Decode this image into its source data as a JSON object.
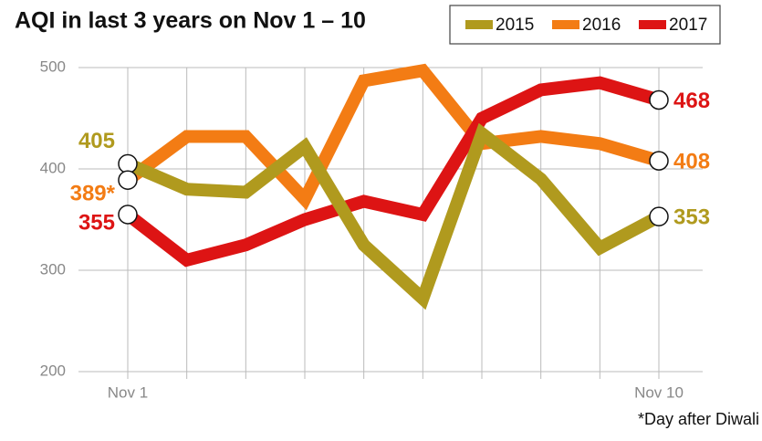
{
  "chart_data": {
    "type": "line",
    "title": "AQI in last 3 years on Nov 1 – 10",
    "categories": [
      "Nov 1",
      null,
      null,
      null,
      null,
      null,
      null,
      null,
      null,
      "Nov 10"
    ],
    "series": [
      {
        "name": "2015",
        "color": "#b09a1e",
        "values": [
          405,
          380,
          377,
          422,
          325,
          272,
          435,
          390,
          322,
          353
        ],
        "value_labels": [
          "405",
          null,
          null,
          null,
          null,
          null,
          null,
          null,
          null,
          "353"
        ]
      },
      {
        "name": "2016",
        "color": "#f37c14",
        "values": [
          389,
          432,
          432,
          370,
          487,
          497,
          425,
          432,
          425,
          408
        ],
        "value_labels": [
          "389*",
          null,
          null,
          null,
          null,
          null,
          null,
          null,
          null,
          "408"
        ]
      },
      {
        "name": "2017",
        "color": "#dd1414",
        "values": [
          355,
          310,
          325,
          350,
          368,
          355,
          450,
          478,
          485,
          468
        ],
        "value_labels": [
          "355",
          null,
          null,
          null,
          null,
          null,
          null,
          null,
          null,
          "468"
        ]
      }
    ],
    "ylim": [
      200,
      500
    ],
    "yticks": [
      200,
      300,
      400,
      500
    ],
    "grid": true,
    "legend": "top-right",
    "annotation": "*Day after Diwali"
  }
}
